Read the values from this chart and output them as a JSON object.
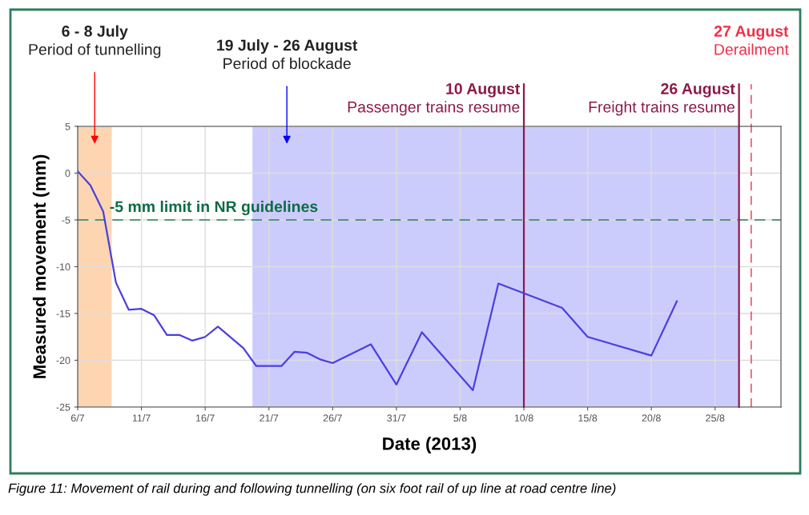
{
  "chart_data": {
    "type": "line",
    "xlabel": "Date (2013)",
    "ylabel": "Measured movement (mm)",
    "x": [
      "2013-07-06",
      "2013-07-07",
      "2013-07-08",
      "2013-07-09",
      "2013-07-10",
      "2013-07-11",
      "2013-07-12",
      "2013-07-13",
      "2013-07-14",
      "2013-07-15",
      "2013-07-16",
      "2013-07-17",
      "2013-07-19",
      "2013-07-20",
      "2013-07-22",
      "2013-07-23",
      "2013-07-24",
      "2013-07-25",
      "2013-07-26",
      "2013-07-29",
      "2013-07-31",
      "2013-08-02",
      "2013-08-06",
      "2013-08-08",
      "2013-08-13",
      "2013-08-15",
      "2013-08-20",
      "2013-08-22"
    ],
    "series": [
      {
        "color": "#4b3fe0",
        "values": [
          0.2,
          -1.3,
          -4.1,
          -11.7,
          -14.6,
          -14.5,
          -15.2,
          -17.3,
          -17.3,
          -17.9,
          -17.5,
          -16.4,
          -18.7,
          -20.6,
          -20.6,
          -19.1,
          -19.2,
          -19.9,
          -20.3,
          -18.3,
          -22.6,
          -17.0,
          -23.2,
          -11.8,
          -14.4,
          -17.5,
          -19.5,
          -13.7
        ]
      }
    ],
    "xlim": [
      "2013-07-06",
      "2013-08-30T04:00"
    ],
    "xticks": [
      {
        "value": "2013-07-06",
        "label": "6/7"
      },
      {
        "value": "2013-07-11",
        "label": "11/7"
      },
      {
        "value": "2013-07-16",
        "label": "16/7"
      },
      {
        "value": "2013-07-21",
        "label": "21/7"
      },
      {
        "value": "2013-07-26",
        "label": "26/7"
      },
      {
        "value": "2013-07-31",
        "label": "31/7"
      },
      {
        "value": "2013-08-05",
        "label": "5/8"
      },
      {
        "value": "2013-08-10",
        "label": "10/8"
      },
      {
        "value": "2013-08-15",
        "label": "15/8"
      },
      {
        "value": "2013-08-20",
        "label": "20/8"
      },
      {
        "value": "2013-08-25",
        "label": "25/8"
      }
    ],
    "ylim": [
      -25,
      5
    ],
    "yticks": [
      -25,
      -20,
      -15,
      -10,
      -5,
      0,
      5
    ],
    "grid": true,
    "marker": "none",
    "line_style": "solid",
    "legend": false,
    "bands": [
      {
        "axis": "x",
        "from": "2013-07-06",
        "to": "2013-07-08T16:00",
        "label": "6 - 8 July\nPeriod of tunnelling",
        "color": "#fdd5b1"
      },
      {
        "axis": "x",
        "from": "2013-07-19T17:00",
        "to": "2013-08-26T21:00",
        "label": "19 July - 26 August\nPeriod of blockade",
        "color": "#ccccfc"
      }
    ],
    "ref_lines": [
      {
        "axis": "y",
        "value": -5,
        "label": "-5 mm limit in NR guidelines",
        "color": "#2e7d5b",
        "line_style": "dashed"
      },
      {
        "axis": "x",
        "value": "2013-08-10",
        "label": "10 August\nPassenger trains resume",
        "color": "#8b1a4a",
        "line_style": "solid"
      },
      {
        "axis": "x",
        "value": "2013-08-26T21:00",
        "label": "26 August\nFreight trains resume",
        "color": "#8b1a4a",
        "line_style": "solid"
      },
      {
        "axis": "x",
        "value": "2013-08-27T20:00",
        "label": "27 August\nDerailment",
        "color": "#f0304a",
        "line_style": "dashed"
      }
    ],
    "annotations": [
      "Figure 11: Movement of rail during and following tunnelling (on six foot rail of up line at road centre line)"
    ]
  }
}
